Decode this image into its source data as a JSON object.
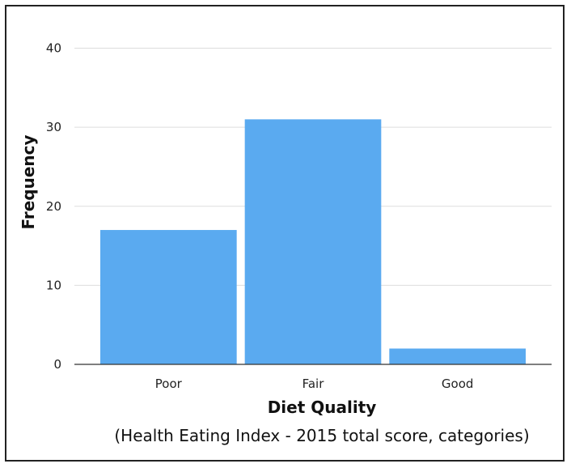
{
  "chart_data": {
    "type": "bar",
    "categories": [
      "Poor",
      "Fair",
      "Good"
    ],
    "values": [
      17,
      31,
      2
    ],
    "xlabel": "Diet Quality",
    "xlabel_sub": "(Health Eating Index - 2015 total score, categories)",
    "ylabel": "Frequency",
    "ylim": [
      0,
      42
    ],
    "yticks": [
      0,
      10,
      20,
      30,
      40
    ],
    "grid": true,
    "colors": {
      "bar": "#5aaaf0",
      "grid": "#dddddd",
      "axis": "#333333"
    }
  }
}
